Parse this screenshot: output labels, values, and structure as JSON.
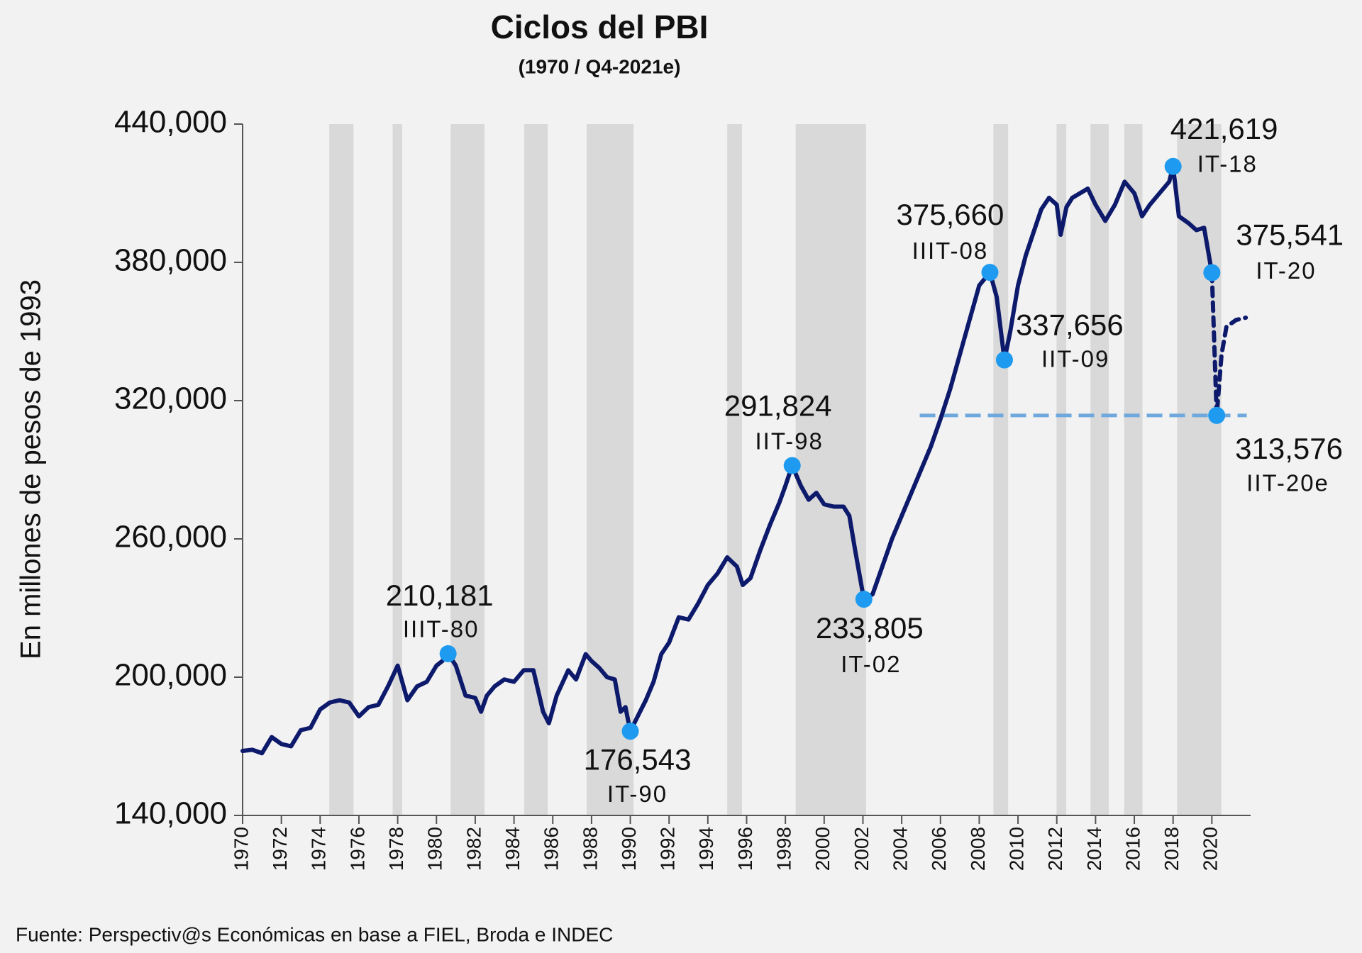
{
  "chart_data": {
    "type": "line",
    "title": "Ciclos del PBI",
    "subtitle": "(1970 / Q4-2021e)",
    "y_label": "En millones de pesos de 1993",
    "source": "Fuente: Perspectiv@s Económicas en base a FIEL, Broda e INDEC",
    "xlim": [
      1970,
      2022
    ],
    "xticks": [
      1970,
      1972,
      1974,
      1976,
      1978,
      1980,
      1982,
      1984,
      1986,
      1988,
      1990,
      1992,
      1994,
      1996,
      1998,
      2000,
      2002,
      2004,
      2006,
      2008,
      2010,
      2012,
      2014,
      2016,
      2018,
      2020
    ],
    "ylim": [
      140000,
      440000
    ],
    "yticks": [
      {
        "value": 140000,
        "label": "140,000"
      },
      {
        "value": 200000,
        "label": "200,000"
      },
      {
        "value": 260000,
        "label": "260,000"
      },
      {
        "value": 320000,
        "label": "320,000"
      },
      {
        "value": 380000,
        "label": "380,000"
      },
      {
        "value": 440000,
        "label": "440,000"
      }
    ],
    "grid": false,
    "shade_color": "#d9d9d9",
    "shaded_periods": [
      [
        1974.47,
        1975.72
      ],
      [
        1977.74,
        1978.23
      ],
      [
        1980.73,
        1982.48
      ],
      [
        1984.53,
        1985.74
      ],
      [
        1987.75,
        1990.17
      ],
      [
        1995.0,
        1995.76
      ],
      [
        1998.53,
        2002.16
      ],
      [
        2008.73,
        2009.49
      ],
      [
        2011.99,
        2012.49
      ],
      [
        2013.74,
        2014.68
      ],
      [
        2015.48,
        2016.42
      ],
      [
        2018.21,
        2020.49
      ]
    ],
    "series": [
      {
        "color": "#0d1a6b",
        "dashed": false,
        "x": [
          1970.0,
          1970.5,
          1971.0,
          1971.5,
          1972.0,
          1972.5,
          1973.0,
          1973.5,
          1974.0,
          1974.5,
          1975.0,
          1975.5,
          1976.0,
          1976.5,
          1977.0,
          1977.5,
          1978.0,
          1978.5,
          1979.0,
          1979.5,
          1980.0,
          1980.3,
          1980.6,
          1981.0,
          1981.5,
          1982.0,
          1982.3,
          1982.6,
          1983.0,
          1983.5,
          1984.0,
          1984.5,
          1985.0,
          1985.5,
          1985.8,
          1986.2,
          1986.8,
          1987.2,
          1987.7,
          1988.0,
          1988.4,
          1988.8,
          1989.2,
          1989.5,
          1989.75,
          1990.0,
          1990.5,
          1990.8,
          1991.2,
          1991.6,
          1992.0,
          1992.5,
          1993.0,
          1993.5,
          1994.0,
          1994.5,
          1995.0,
          1995.5,
          1995.8,
          1996.2,
          1996.7,
          1997.2,
          1997.7,
          1998.0,
          1998.35,
          1998.8,
          1999.2,
          1999.6,
          2000.0,
          2000.5,
          2001.0,
          2001.3,
          2001.6,
          2002.05,
          2002.5,
          2003.0,
          2003.5,
          2004.0,
          2004.5,
          2005.0,
          2005.5,
          2006.0,
          2006.5,
          2007.0,
          2007.5,
          2008.0,
          2008.55,
          2008.9,
          2009.3,
          2009.6,
          2010.0,
          2010.4,
          2010.8,
          2011.2,
          2011.6,
          2012.0,
          2012.2,
          2012.5,
          2012.8,
          2013.2,
          2013.6,
          2014.0,
          2014.5,
          2015.0,
          2015.5,
          2016.0,
          2016.4,
          2016.8,
          2017.3,
          2017.8,
          2018.0,
          2018.3,
          2018.8,
          2019.2,
          2019.6,
          2020.0
        ],
        "values": [
          168000,
          168500,
          167000,
          174000,
          171000,
          170000,
          177000,
          178000,
          186000,
          189000,
          190000,
          189000,
          183000,
          187000,
          188000,
          196000,
          205000,
          190000,
          196000,
          198000,
          205000,
          207000,
          210181,
          205000,
          192000,
          191000,
          185000,
          192000,
          196000,
          199000,
          198000,
          203000,
          203000,
          185000,
          180000,
          192000,
          203000,
          199000,
          210000,
          207000,
          204000,
          200000,
          199000,
          185000,
          187000,
          176543,
          185000,
          190000,
          198000,
          210000,
          215000,
          226000,
          225000,
          232000,
          240000,
          245000,
          252000,
          248000,
          240000,
          243000,
          255000,
          266000,
          276000,
          283000,
          291824,
          283000,
          277000,
          280000,
          275000,
          274000,
          274000,
          270000,
          255000,
          233805,
          236000,
          248000,
          260000,
          270000,
          280000,
          290000,
          300000,
          312000,
          325000,
          340000,
          355000,
          370000,
          375660,
          365000,
          337656,
          350000,
          370000,
          383000,
          393000,
          403000,
          408000,
          405000,
          392000,
          404000,
          408000,
          410000,
          412000,
          405000,
          398000,
          405000,
          415000,
          410000,
          400000,
          405000,
          410000,
          415000,
          421619,
          400000,
          397000,
          394000,
          395000,
          375541
        ]
      },
      {
        "color": "#0d1a6b",
        "dashed": true,
        "x": [
          2020.0,
          2020.25,
          2020.5,
          2020.75,
          2021.25,
          2021.75
        ],
        "values": [
          375541,
          313576,
          340000,
          352000,
          355000,
          356000
        ]
      }
    ],
    "point_color": "#1e9bf0",
    "reference_line": {
      "value": 313576,
      "x": [
        2004.93,
        2021.8
      ],
      "color": "#6fa8dc"
    },
    "annotations": [
      {
        "x": 1980.6,
        "value": 210181,
        "value_label": "210,181",
        "period": "IIIT-80"
      },
      {
        "x": 1990.0,
        "value": 176543,
        "value_label": "176,543",
        "period": "IT-90"
      },
      {
        "x": 1998.35,
        "value": 291824,
        "value_label": "291,824",
        "period": "IIT-98"
      },
      {
        "x": 2002.05,
        "value": 233805,
        "value_label": "233,805",
        "period": "IT-02"
      },
      {
        "x": 2008.55,
        "value": 375660,
        "value_label": "375,660",
        "period": "IIIT-08"
      },
      {
        "x": 2009.3,
        "value": 337656,
        "value_label": "337,656",
        "period": "IIT-09"
      },
      {
        "x": 2018.0,
        "value": 421619,
        "value_label": "421,619",
        "period": "IT-18"
      },
      {
        "x": 2020.0,
        "value": 375541,
        "value_label": "375,541",
        "period": "IT-20"
      },
      {
        "x": 2020.25,
        "value": 313576,
        "value_label": "313,576",
        "period": "IIT-20e"
      }
    ]
  }
}
